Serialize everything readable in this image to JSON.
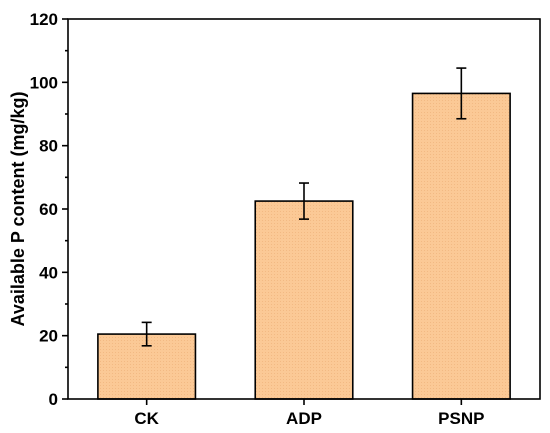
{
  "chart_data": {
    "type": "bar",
    "title": "",
    "xlabel": "",
    "ylabel": "Available P content (mg/kg)",
    "categories": [
      "CK",
      "ADP",
      "PSNP"
    ],
    "values": [
      20.5,
      62.5,
      96.5
    ],
    "errors": [
      3.7,
      5.7,
      8.0
    ],
    "ylim": [
      0,
      120
    ],
    "yticks": [
      0,
      20,
      40,
      60,
      80,
      100,
      120
    ],
    "grid": false,
    "legend": "none",
    "bar_color": "#fbc996",
    "edge_color": "#000000"
  }
}
